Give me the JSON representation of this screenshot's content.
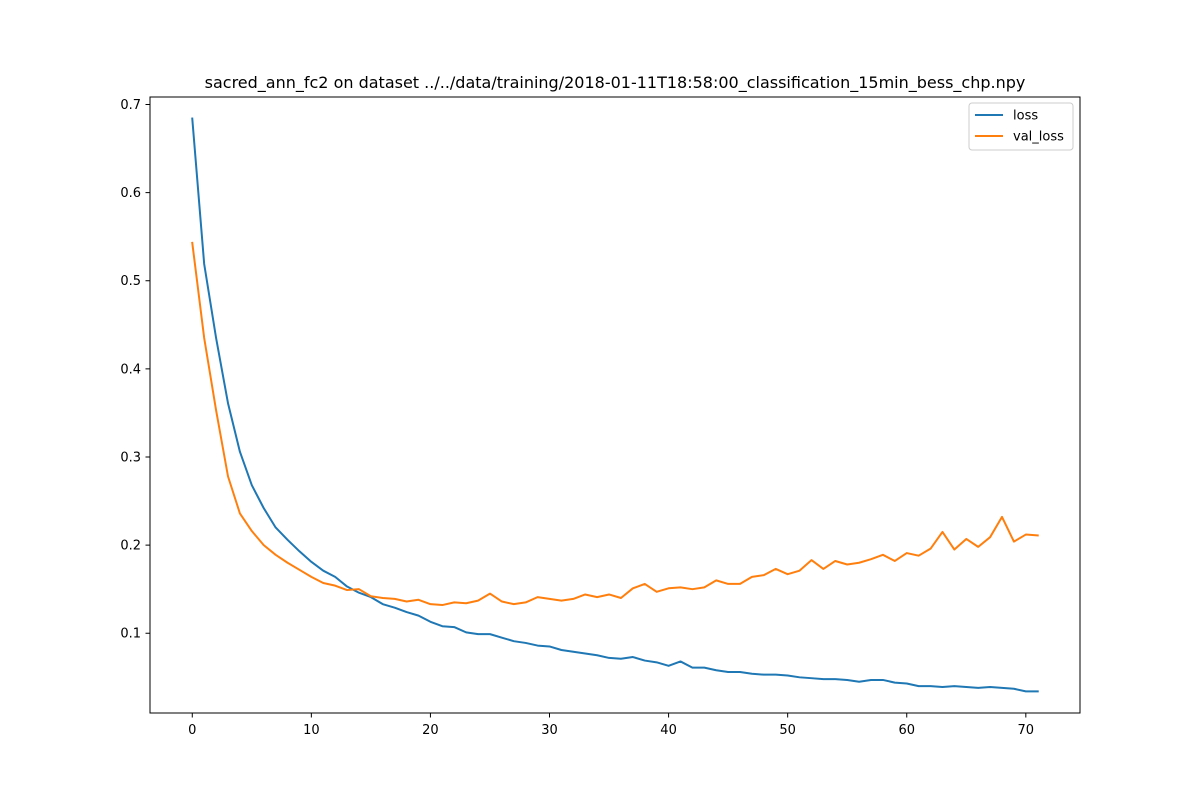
{
  "chart_data": {
    "type": "line",
    "title": "sacred_ann_fc2 on dataset ../../data/training/2018-01-11T18:58:00_classification_15min_bess_chp.npy",
    "xlabel": "",
    "ylabel": "",
    "xlim": [
      -3.55,
      74.55
    ],
    "ylim": [
      0.0095,
      0.7085
    ],
    "xticks": [
      0,
      10,
      20,
      30,
      40,
      50,
      60,
      70
    ],
    "xtick_labels": [
      "0",
      "10",
      "20",
      "30",
      "40",
      "50",
      "60",
      "70"
    ],
    "yticks": [
      0.1,
      0.2,
      0.3,
      0.4,
      0.5,
      0.6,
      0.7
    ],
    "ytick_labels": [
      "0.1",
      "0.2",
      "0.3",
      "0.4",
      "0.5",
      "0.6",
      "0.7"
    ],
    "grid": false,
    "legend_position": "upper right",
    "x": [
      0,
      1,
      2,
      3,
      4,
      5,
      6,
      7,
      8,
      9,
      10,
      11,
      12,
      13,
      14,
      15,
      16,
      17,
      18,
      19,
      20,
      21,
      22,
      23,
      24,
      25,
      26,
      27,
      28,
      29,
      30,
      31,
      32,
      33,
      34,
      35,
      36,
      37,
      38,
      39,
      40,
      41,
      42,
      43,
      44,
      45,
      46,
      47,
      48,
      49,
      50,
      51,
      52,
      53,
      54,
      55,
      56,
      57,
      58,
      59,
      60,
      61,
      62,
      63,
      64,
      65,
      66,
      67,
      68,
      69,
      70,
      71
    ],
    "series": [
      {
        "name": "loss",
        "color": "#1f77b4",
        "values": [
          0.684,
          0.519,
          0.435,
          0.361,
          0.306,
          0.268,
          0.242,
          0.22,
          0.206,
          0.193,
          0.181,
          0.171,
          0.164,
          0.153,
          0.146,
          0.141,
          0.133,
          0.129,
          0.124,
          0.12,
          0.113,
          0.108,
          0.107,
          0.101,
          0.099,
          0.099,
          0.095,
          0.091,
          0.089,
          0.086,
          0.085,
          0.081,
          0.079,
          0.077,
          0.075,
          0.072,
          0.071,
          0.073,
          0.069,
          0.067,
          0.063,
          0.068,
          0.061,
          0.061,
          0.058,
          0.056,
          0.056,
          0.054,
          0.053,
          0.053,
          0.052,
          0.05,
          0.049,
          0.048,
          0.048,
          0.047,
          0.045,
          0.047,
          0.047,
          0.044,
          0.043,
          0.04,
          0.04,
          0.039,
          0.04,
          0.039,
          0.038,
          0.039,
          0.038,
          0.037,
          0.034,
          0.034
        ]
      },
      {
        "name": "val_loss",
        "color": "#ff7f0e",
        "values": [
          0.543,
          0.435,
          0.353,
          0.278,
          0.236,
          0.216,
          0.2,
          0.189,
          0.18,
          0.172,
          0.164,
          0.157,
          0.154,
          0.149,
          0.15,
          0.142,
          0.14,
          0.139,
          0.136,
          0.138,
          0.133,
          0.132,
          0.135,
          0.134,
          0.137,
          0.145,
          0.136,
          0.133,
          0.135,
          0.141,
          0.139,
          0.137,
          0.139,
          0.144,
          0.141,
          0.144,
          0.14,
          0.151,
          0.156,
          0.147,
          0.151,
          0.152,
          0.15,
          0.152,
          0.16,
          0.156,
          0.156,
          0.164,
          0.166,
          0.173,
          0.167,
          0.171,
          0.183,
          0.173,
          0.182,
          0.178,
          0.18,
          0.184,
          0.189,
          0.182,
          0.191,
          0.188,
          0.196,
          0.215,
          0.195,
          0.207,
          0.198,
          0.209,
          0.232,
          0.204,
          0.212,
          0.211
        ]
      }
    ]
  }
}
